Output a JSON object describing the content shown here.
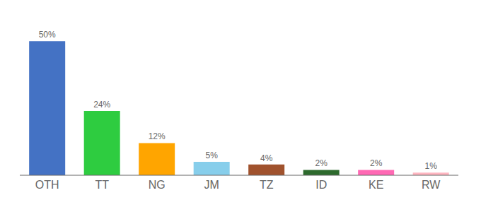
{
  "chart_data": {
    "type": "bar",
    "categories": [
      "OTH",
      "TT",
      "NG",
      "JM",
      "TZ",
      "ID",
      "KE",
      "RW"
    ],
    "values": [
      50,
      24,
      12,
      5,
      4,
      2,
      2,
      1
    ],
    "value_labels": [
      "50%",
      "24%",
      "12%",
      "5%",
      "4%",
      "2%",
      "2%",
      "1%"
    ],
    "colors": [
      "#4472C4",
      "#2ECC40",
      "#FFA500",
      "#87CEEB",
      "#A0522D",
      "#2D6A2D",
      "#FF69B4",
      "#FFB6C1"
    ],
    "ylim": [
      0,
      58
    ],
    "data_labels": true,
    "tick_labels": "x"
  }
}
